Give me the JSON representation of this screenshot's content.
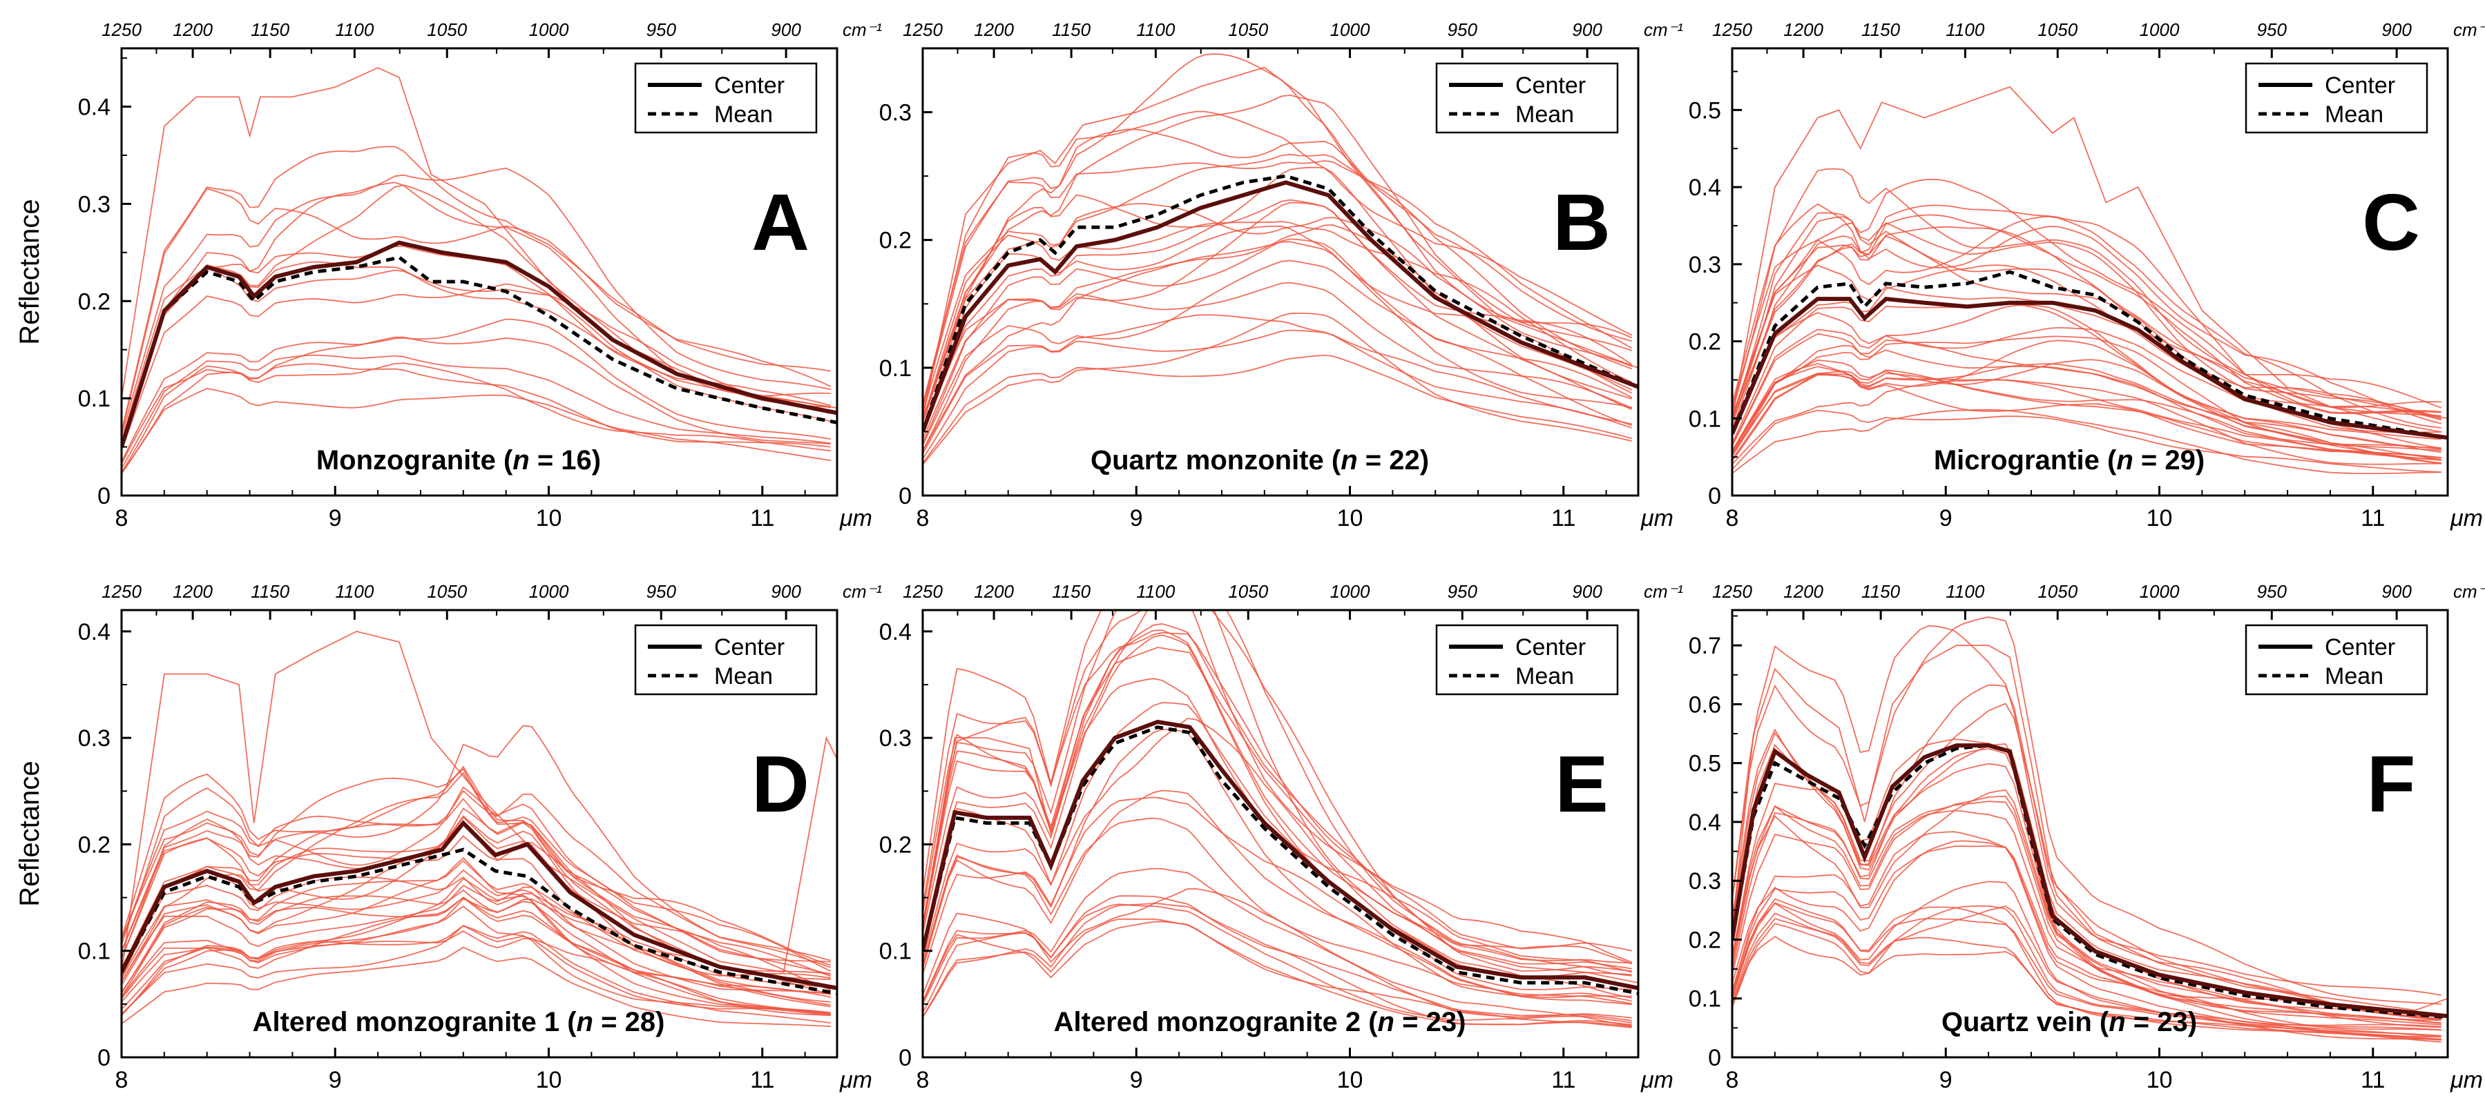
{
  "figure": {
    "ylabel": "Reflectance",
    "bottom_axis_unit": "μm",
    "top_axis_unit": "cm⁻¹",
    "legend": {
      "center_label": "Center",
      "mean_label": "Mean"
    },
    "colors": {
      "sample": "#f0553f",
      "center": "#5a0f0c",
      "mean": "#000000",
      "axis": "#000000"
    }
  },
  "chart_data": [
    {
      "type": "line",
      "panel": "A",
      "title": "Monzogranite (n = 16)",
      "title_prefix": "Monzogranite (",
      "title_n": "n",
      "title_suffix": " = 16)",
      "xlabel": "μm",
      "ylabel": "Reflectance",
      "xlim": [
        8,
        11.35
      ],
      "ylim": [
        0,
        0.46
      ],
      "yticks": [
        0,
        0.1,
        0.2,
        0.3,
        0.4
      ],
      "ytick_labels": [
        "0",
        "0.1",
        "0.2",
        "0.3",
        "0.4"
      ],
      "xticks": [
        8,
        9,
        10,
        11
      ],
      "xtick_labels": [
        "8",
        "9",
        "10",
        "11"
      ],
      "top_ticks": [
        1250,
        1200,
        1150,
        1100,
        1050,
        1000,
        950,
        900
      ],
      "top_tick_labels": [
        "1250",
        "1200",
        "1150",
        "1100",
        "1050",
        "1000",
        "950",
        "900"
      ],
      "sample_count": 16,
      "top_sample": "A_top",
      "series": [
        {
          "name": "Center",
          "x": [
            8.0,
            8.2,
            8.4,
            8.55,
            8.62,
            8.72,
            8.9,
            9.1,
            9.3,
            9.5,
            9.8,
            10.0,
            10.3,
            10.6,
            11.0,
            11.35
          ],
          "y": [
            0.05,
            0.19,
            0.235,
            0.225,
            0.205,
            0.225,
            0.235,
            0.24,
            0.26,
            0.25,
            0.24,
            0.215,
            0.16,
            0.125,
            0.1,
            0.085
          ]
        },
        {
          "name": "Mean",
          "x": [
            8.0,
            8.2,
            8.4,
            8.55,
            8.62,
            8.72,
            8.9,
            9.1,
            9.3,
            9.45,
            9.6,
            9.8,
            10.0,
            10.3,
            10.6,
            11.0,
            11.35
          ],
          "y": [
            0.05,
            0.19,
            0.23,
            0.22,
            0.2,
            0.22,
            0.23,
            0.235,
            0.245,
            0.22,
            0.22,
            0.21,
            0.185,
            0.14,
            0.11,
            0.09,
            0.075
          ]
        }
      ]
    },
    {
      "type": "line",
      "panel": "B",
      "title": "Quartz monzonite (n = 22)",
      "title_prefix": "Quartz monzonite (",
      "title_n": "n",
      "title_suffix": " = 22)",
      "xlabel": "μm",
      "ylabel": "Reflectance",
      "xlim": [
        8,
        11.35
      ],
      "ylim": [
        0,
        0.35
      ],
      "yticks": [
        0,
        0.1,
        0.2,
        0.3
      ],
      "ytick_labels": [
        "0",
        "0.1",
        "0.2",
        "0.3"
      ],
      "xticks": [
        8,
        9,
        10,
        11
      ],
      "xtick_labels": [
        "8",
        "9",
        "10",
        "11"
      ],
      "top_ticks": [
        1250,
        1200,
        1150,
        1100,
        1050,
        1000,
        950,
        900
      ],
      "top_tick_labels": [
        "1250",
        "1200",
        "1150",
        "1100",
        "1050",
        "1000",
        "950",
        "900"
      ],
      "sample_count": 22,
      "top_sample": "B_top",
      "series": [
        {
          "name": "Center",
          "x": [
            8.0,
            8.2,
            8.4,
            8.55,
            8.62,
            8.72,
            8.9,
            9.1,
            9.3,
            9.5,
            9.7,
            9.9,
            10.1,
            10.4,
            10.8,
            11.35
          ],
          "y": [
            0.05,
            0.14,
            0.18,
            0.185,
            0.175,
            0.195,
            0.2,
            0.21,
            0.225,
            0.235,
            0.245,
            0.235,
            0.2,
            0.155,
            0.12,
            0.085
          ]
        },
        {
          "name": "Mean",
          "x": [
            8.0,
            8.2,
            8.4,
            8.55,
            8.62,
            8.72,
            8.9,
            9.1,
            9.3,
            9.5,
            9.7,
            9.9,
            10.1,
            10.4,
            10.8,
            11.35
          ],
          "y": [
            0.05,
            0.15,
            0.19,
            0.2,
            0.19,
            0.21,
            0.21,
            0.22,
            0.235,
            0.245,
            0.25,
            0.24,
            0.205,
            0.16,
            0.125,
            0.085
          ]
        }
      ]
    },
    {
      "type": "line",
      "panel": "C",
      "title": "Micrograntie (n = 29)",
      "title_prefix": "Micrograntie (",
      "title_n": "n",
      "title_suffix": " = 29)",
      "xlabel": "μm",
      "ylabel": "Reflectance",
      "xlim": [
        8,
        11.35
      ],
      "ylim": [
        0,
        0.58
      ],
      "yticks": [
        0,
        0.1,
        0.2,
        0.3,
        0.4,
        0.5
      ],
      "ytick_labels": [
        "0",
        "0.1",
        "0.2",
        "0.3",
        "0.4",
        "0.5"
      ],
      "xticks": [
        8,
        9,
        10,
        11
      ],
      "xtick_labels": [
        "8",
        "9",
        "10",
        "11"
      ],
      "top_ticks": [
        1250,
        1200,
        1150,
        1100,
        1050,
        1000,
        950,
        900
      ],
      "top_tick_labels": [
        "1250",
        "1200",
        "1150",
        "1100",
        "1050",
        "1000",
        "950",
        "900"
      ],
      "sample_count": 29,
      "top_sample": "C_top",
      "series": [
        {
          "name": "Center",
          "x": [
            8.0,
            8.2,
            8.4,
            8.55,
            8.62,
            8.72,
            8.9,
            9.1,
            9.3,
            9.5,
            9.7,
            9.9,
            10.1,
            10.4,
            10.8,
            11.35
          ],
          "y": [
            0.08,
            0.21,
            0.255,
            0.255,
            0.23,
            0.255,
            0.25,
            0.245,
            0.25,
            0.25,
            0.24,
            0.215,
            0.175,
            0.125,
            0.095,
            0.075
          ]
        },
        {
          "name": "Mean",
          "x": [
            8.0,
            8.2,
            8.4,
            8.55,
            8.62,
            8.72,
            8.9,
            9.1,
            9.3,
            9.5,
            9.7,
            9.9,
            10.1,
            10.4,
            10.8,
            11.35
          ],
          "y": [
            0.08,
            0.22,
            0.27,
            0.275,
            0.245,
            0.275,
            0.27,
            0.275,
            0.29,
            0.27,
            0.26,
            0.225,
            0.18,
            0.13,
            0.1,
            0.075
          ]
        }
      ]
    },
    {
      "type": "line",
      "panel": "D",
      "title": "Altered monzogranite 1 (n = 28)",
      "title_prefix": "Altered monzogranite 1 (",
      "title_n": "n",
      "title_suffix": " = 28)",
      "xlabel": "μm",
      "ylabel": "Reflectance",
      "xlim": [
        8,
        11.35
      ],
      "ylim": [
        0,
        0.42
      ],
      "yticks": [
        0,
        0.1,
        0.2,
        0.3,
        0.4
      ],
      "ytick_labels": [
        "0",
        "0.1",
        "0.2",
        "0.3",
        "0.4"
      ],
      "xticks": [
        8,
        9,
        10,
        11
      ],
      "xtick_labels": [
        "8",
        "9",
        "10",
        "11"
      ],
      "top_ticks": [
        1250,
        1200,
        1150,
        1100,
        1050,
        1000,
        950,
        900
      ],
      "top_tick_labels": [
        "1250",
        "1200",
        "1150",
        "1100",
        "1050",
        "1000",
        "950",
        "900"
      ],
      "sample_count": 28,
      "top_sample": "D_top",
      "series": [
        {
          "name": "Center",
          "x": [
            8.0,
            8.2,
            8.4,
            8.55,
            8.62,
            8.72,
            8.9,
            9.1,
            9.3,
            9.5,
            9.6,
            9.75,
            9.9,
            10.1,
            10.4,
            10.8,
            11.35
          ],
          "y": [
            0.08,
            0.16,
            0.175,
            0.165,
            0.145,
            0.16,
            0.17,
            0.175,
            0.185,
            0.195,
            0.22,
            0.19,
            0.2,
            0.155,
            0.115,
            0.085,
            0.065
          ]
        },
        {
          "name": "Mean",
          "x": [
            8.0,
            8.2,
            8.4,
            8.55,
            8.62,
            8.72,
            8.9,
            9.1,
            9.3,
            9.5,
            9.6,
            9.75,
            9.9,
            10.1,
            10.4,
            10.8,
            11.35
          ],
          "y": [
            0.08,
            0.155,
            0.17,
            0.16,
            0.145,
            0.155,
            0.165,
            0.17,
            0.18,
            0.19,
            0.195,
            0.175,
            0.17,
            0.14,
            0.105,
            0.08,
            0.06
          ]
        }
      ]
    },
    {
      "type": "line",
      "panel": "E",
      "title": "Altered monzogranite 2 (n = 23)",
      "title_prefix": "Altered monzogranite 2 (",
      "title_n": "n",
      "title_suffix": " = 23)",
      "xlabel": "μm",
      "ylabel": "Reflectance",
      "xlim": [
        8,
        11.35
      ],
      "ylim": [
        0,
        0.42
      ],
      "yticks": [
        0,
        0.1,
        0.2,
        0.3,
        0.4
      ],
      "ytick_labels": [
        "0",
        "0.1",
        "0.2",
        "0.3",
        "0.4"
      ],
      "xticks": [
        8,
        9,
        10,
        11
      ],
      "xtick_labels": [
        "8",
        "9",
        "10",
        "11"
      ],
      "top_ticks": [
        1250,
        1200,
        1150,
        1100,
        1050,
        1000,
        950,
        900
      ],
      "top_tick_labels": [
        "1250",
        "1200",
        "1150",
        "1100",
        "1050",
        "1000",
        "950",
        "900"
      ],
      "sample_count": 23,
      "top_sample": "E_top",
      "series": [
        {
          "name": "Center",
          "x": [
            8.0,
            8.15,
            8.3,
            8.5,
            8.6,
            8.75,
            8.9,
            9.1,
            9.25,
            9.4,
            9.6,
            9.9,
            10.2,
            10.5,
            10.8,
            11.1,
            11.35
          ],
          "y": [
            0.1,
            0.23,
            0.225,
            0.225,
            0.18,
            0.26,
            0.3,
            0.315,
            0.31,
            0.27,
            0.22,
            0.165,
            0.12,
            0.085,
            0.075,
            0.075,
            0.065
          ]
        },
        {
          "name": "Mean",
          "x": [
            8.0,
            8.15,
            8.3,
            8.5,
            8.6,
            8.75,
            8.9,
            9.1,
            9.25,
            9.4,
            9.6,
            9.9,
            10.2,
            10.5,
            10.8,
            11.1,
            11.35
          ],
          "y": [
            0.1,
            0.225,
            0.22,
            0.22,
            0.18,
            0.255,
            0.295,
            0.31,
            0.305,
            0.26,
            0.215,
            0.16,
            0.115,
            0.08,
            0.07,
            0.07,
            0.06
          ]
        }
      ]
    },
    {
      "type": "line",
      "panel": "F",
      "title": "Quartz vein (n = 23)",
      "title_prefix": "Quartz vein (",
      "title_n": "n",
      "title_suffix": " = 23)",
      "xlabel": "μm",
      "ylabel": "Reflectance",
      "xlim": [
        8,
        11.35
      ],
      "ylim": [
        0,
        0.76
      ],
      "yticks": [
        0,
        0.1,
        0.2,
        0.3,
        0.4,
        0.5,
        0.6,
        0.7
      ],
      "ytick_labels": [
        "0",
        "0.1",
        "0.2",
        "0.3",
        "0.4",
        "0.5",
        "0.6",
        "0.7"
      ],
      "xticks": [
        8,
        9,
        10,
        11
      ],
      "xtick_labels": [
        "8",
        "9",
        "10",
        "11"
      ],
      "top_ticks": [
        1250,
        1200,
        1150,
        1100,
        1050,
        1000,
        950,
        900
      ],
      "top_tick_labels": [
        "1250",
        "1200",
        "1150",
        "1100",
        "1050",
        "1000",
        "950",
        "900"
      ],
      "sample_count": 23,
      "top_sample": "F_top",
      "series": [
        {
          "name": "Center",
          "x": [
            8.0,
            8.1,
            8.2,
            8.35,
            8.5,
            8.62,
            8.75,
            8.9,
            9.05,
            9.2,
            9.3,
            9.4,
            9.5,
            9.7,
            10.0,
            10.4,
            10.8,
            11.35
          ],
          "y": [
            0.2,
            0.42,
            0.52,
            0.48,
            0.45,
            0.34,
            0.46,
            0.51,
            0.53,
            0.53,
            0.52,
            0.38,
            0.24,
            0.18,
            0.14,
            0.11,
            0.09,
            0.07
          ]
        },
        {
          "name": "Mean",
          "x": [
            8.0,
            8.1,
            8.2,
            8.35,
            8.5,
            8.62,
            8.75,
            8.9,
            9.05,
            9.2,
            9.3,
            9.4,
            9.5,
            9.7,
            10.0,
            10.4,
            10.8,
            11.35
          ],
          "y": [
            0.2,
            0.41,
            0.5,
            0.47,
            0.44,
            0.36,
            0.45,
            0.5,
            0.525,
            0.53,
            0.52,
            0.37,
            0.235,
            0.175,
            0.135,
            0.105,
            0.085,
            0.068
          ]
        }
      ]
    }
  ],
  "sample_envelopes": {
    "A_top": {
      "x": [
        8.0,
        8.2,
        8.35,
        8.55,
        8.6,
        8.65,
        8.8,
        9.0,
        9.2,
        9.3,
        9.45,
        9.7,
        10.0,
        10.4,
        10.8,
        11.35
      ],
      "y": [
        0.1,
        0.38,
        0.41,
        0.41,
        0.37,
        0.41,
        0.41,
        0.42,
        0.44,
        0.43,
        0.33,
        0.3,
        0.22,
        0.15,
        0.11,
        0.09
      ]
    },
    "B_top": {
      "x": [
        8.0,
        8.2,
        8.4,
        8.55,
        8.62,
        8.75,
        9.0,
        9.3,
        9.6,
        9.8,
        10.0,
        10.3,
        10.7,
        11.35
      ],
      "y": [
        0.06,
        0.22,
        0.26,
        0.27,
        0.26,
        0.29,
        0.3,
        0.32,
        0.335,
        0.31,
        0.26,
        0.2,
        0.14,
        0.1
      ]
    },
    "C_top": {
      "x": [
        8.0,
        8.2,
        8.4,
        8.5,
        8.6,
        8.7,
        8.9,
        9.1,
        9.3,
        9.5,
        9.6,
        9.75,
        9.9,
        10.2,
        10.6,
        11.35
      ],
      "y": [
        0.1,
        0.4,
        0.49,
        0.5,
        0.45,
        0.51,
        0.49,
        0.51,
        0.53,
        0.47,
        0.49,
        0.38,
        0.4,
        0.24,
        0.14,
        0.1
      ]
    },
    "D_top": {
      "x": [
        8.0,
        8.2,
        8.4,
        8.55,
        8.62,
        8.72,
        8.9,
        9.1,
        9.3,
        9.45,
        9.7,
        10.0,
        10.4,
        10.8,
        11.1,
        11.3,
        11.35
      ],
      "y": [
        0.08,
        0.36,
        0.36,
        0.35,
        0.22,
        0.36,
        0.38,
        0.4,
        0.39,
        0.3,
        0.24,
        0.18,
        0.13,
        0.09,
        0.08,
        0.3,
        0.28
      ]
    },
    "E_top": {
      "x": [
        8.0,
        8.15,
        8.3,
        8.5,
        8.6,
        8.75,
        8.9,
        9.1,
        9.25,
        9.4,
        9.6,
        9.9,
        10.2,
        10.5,
        10.8,
        11.1,
        11.35
      ],
      "y": [
        0.12,
        0.3,
        0.3,
        0.29,
        0.21,
        0.32,
        0.37,
        0.385,
        0.38,
        0.33,
        0.27,
        0.2,
        0.14,
        0.1,
        0.085,
        0.08,
        0.07
      ]
    },
    "F_top": {
      "x": [
        8.0,
        8.1,
        8.2,
        8.35,
        8.5,
        8.62,
        8.75,
        8.9,
        9.05,
        9.2,
        9.3,
        9.4,
        9.5,
        9.7,
        10.0,
        10.4,
        10.8,
        11.2,
        11.35
      ],
      "y": [
        0.22,
        0.55,
        0.66,
        0.6,
        0.56,
        0.4,
        0.6,
        0.67,
        0.7,
        0.7,
        0.68,
        0.5,
        0.3,
        0.21,
        0.16,
        0.12,
        0.1,
        0.08,
        0.1
      ]
    }
  }
}
